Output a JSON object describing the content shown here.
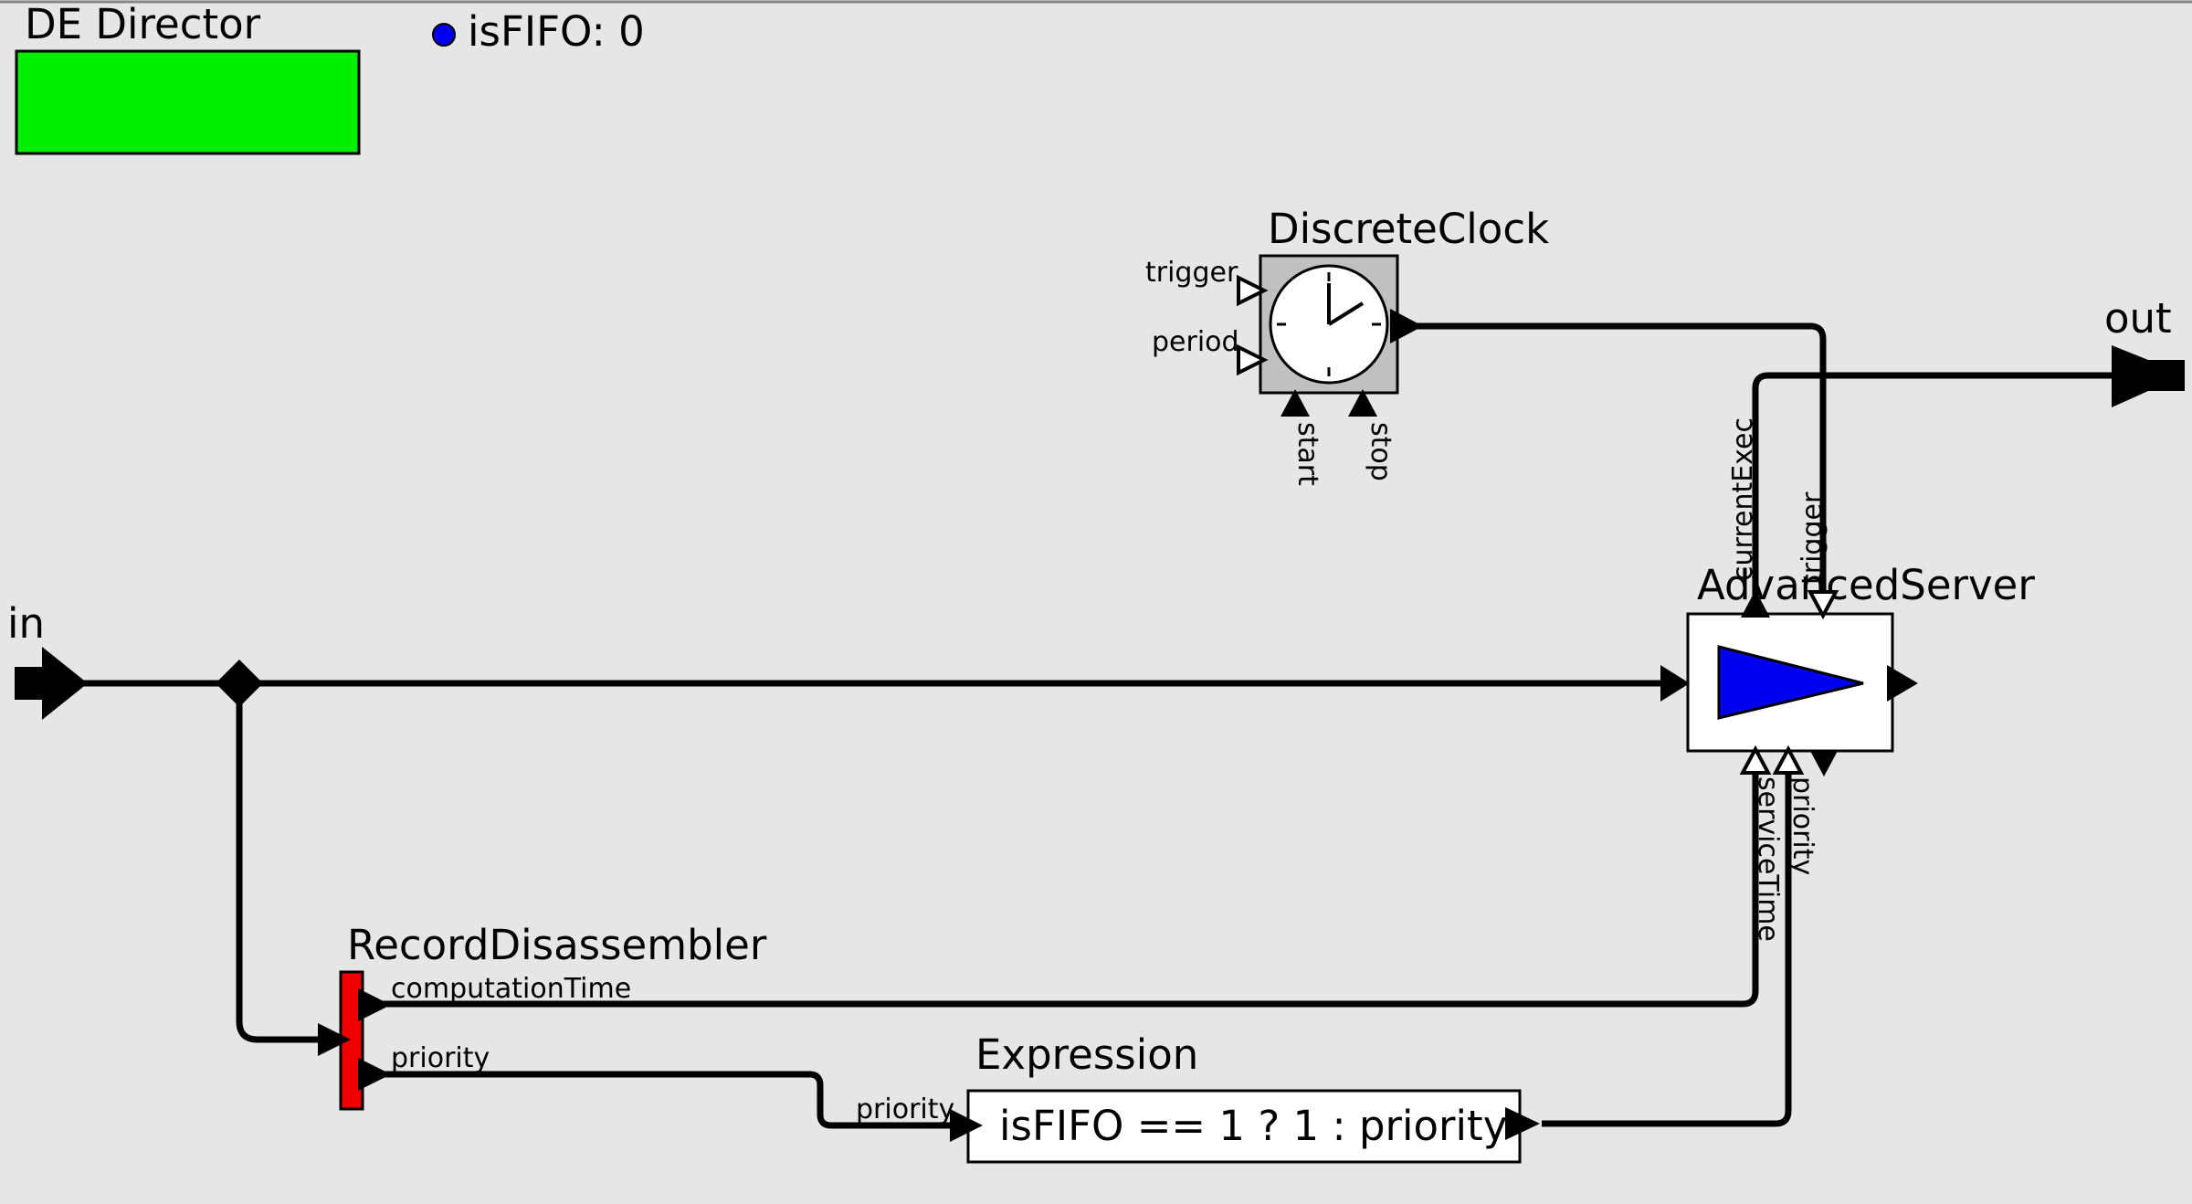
{
  "director": {
    "label": "DE Director",
    "color": "#00ee00"
  },
  "parameter": {
    "text": "isFIFO: 0",
    "dot_color": "#0000ee"
  },
  "external_ports": {
    "in": "in",
    "out": "out"
  },
  "discrete_clock": {
    "title": "DiscreteClock",
    "ports": {
      "trigger": "trigger",
      "period": "period",
      "start": "start",
      "stop": "stop"
    }
  },
  "advanced_server": {
    "title": "AdvancedServer",
    "triangle_color": "#0000ee",
    "ports": {
      "current_exec": "currentExec",
      "trigger": "trigger",
      "service_time": "serviceTime",
      "priority": "priority"
    }
  },
  "record_disassembler": {
    "title": "RecordDisassembler",
    "color": "#ee0000",
    "ports": {
      "computation_time": "computationTime",
      "priority": "priority"
    }
  },
  "expression": {
    "title": "Expression",
    "text": "isFIFO == 1 ? 1 : priority",
    "ports": {
      "priority": "priority"
    }
  }
}
